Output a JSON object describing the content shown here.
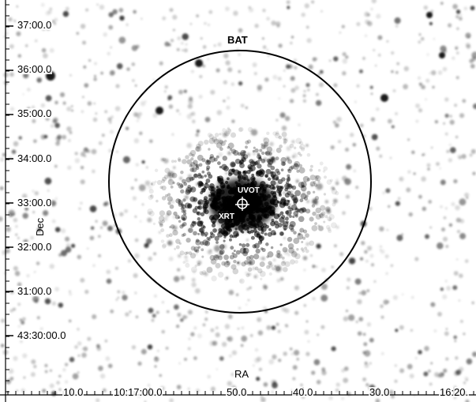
{
  "colors": {
    "background": "#ffffff",
    "stars": "#000000",
    "circle": "#000000",
    "marker": "#ffffff"
  },
  "annotations": {
    "bat": "BAT",
    "uvot": "UVOT",
    "xrt": "XRT"
  },
  "axes": {
    "x_label": "RA",
    "y_label": "Dec",
    "dec_ticks": [
      "37:00.0",
      "36:00.0",
      "35:00.0",
      "34:00.0",
      "33:00.0",
      "32:00.0",
      "31:00.0",
      "43:30:00.0"
    ],
    "ra_ticks": [
      "10.0",
      "10:17:00.0",
      "50.0",
      "40.0",
      "30.0",
      "16:20."
    ]
  },
  "icons": {
    "marker": "crosshair-circle-icon"
  }
}
